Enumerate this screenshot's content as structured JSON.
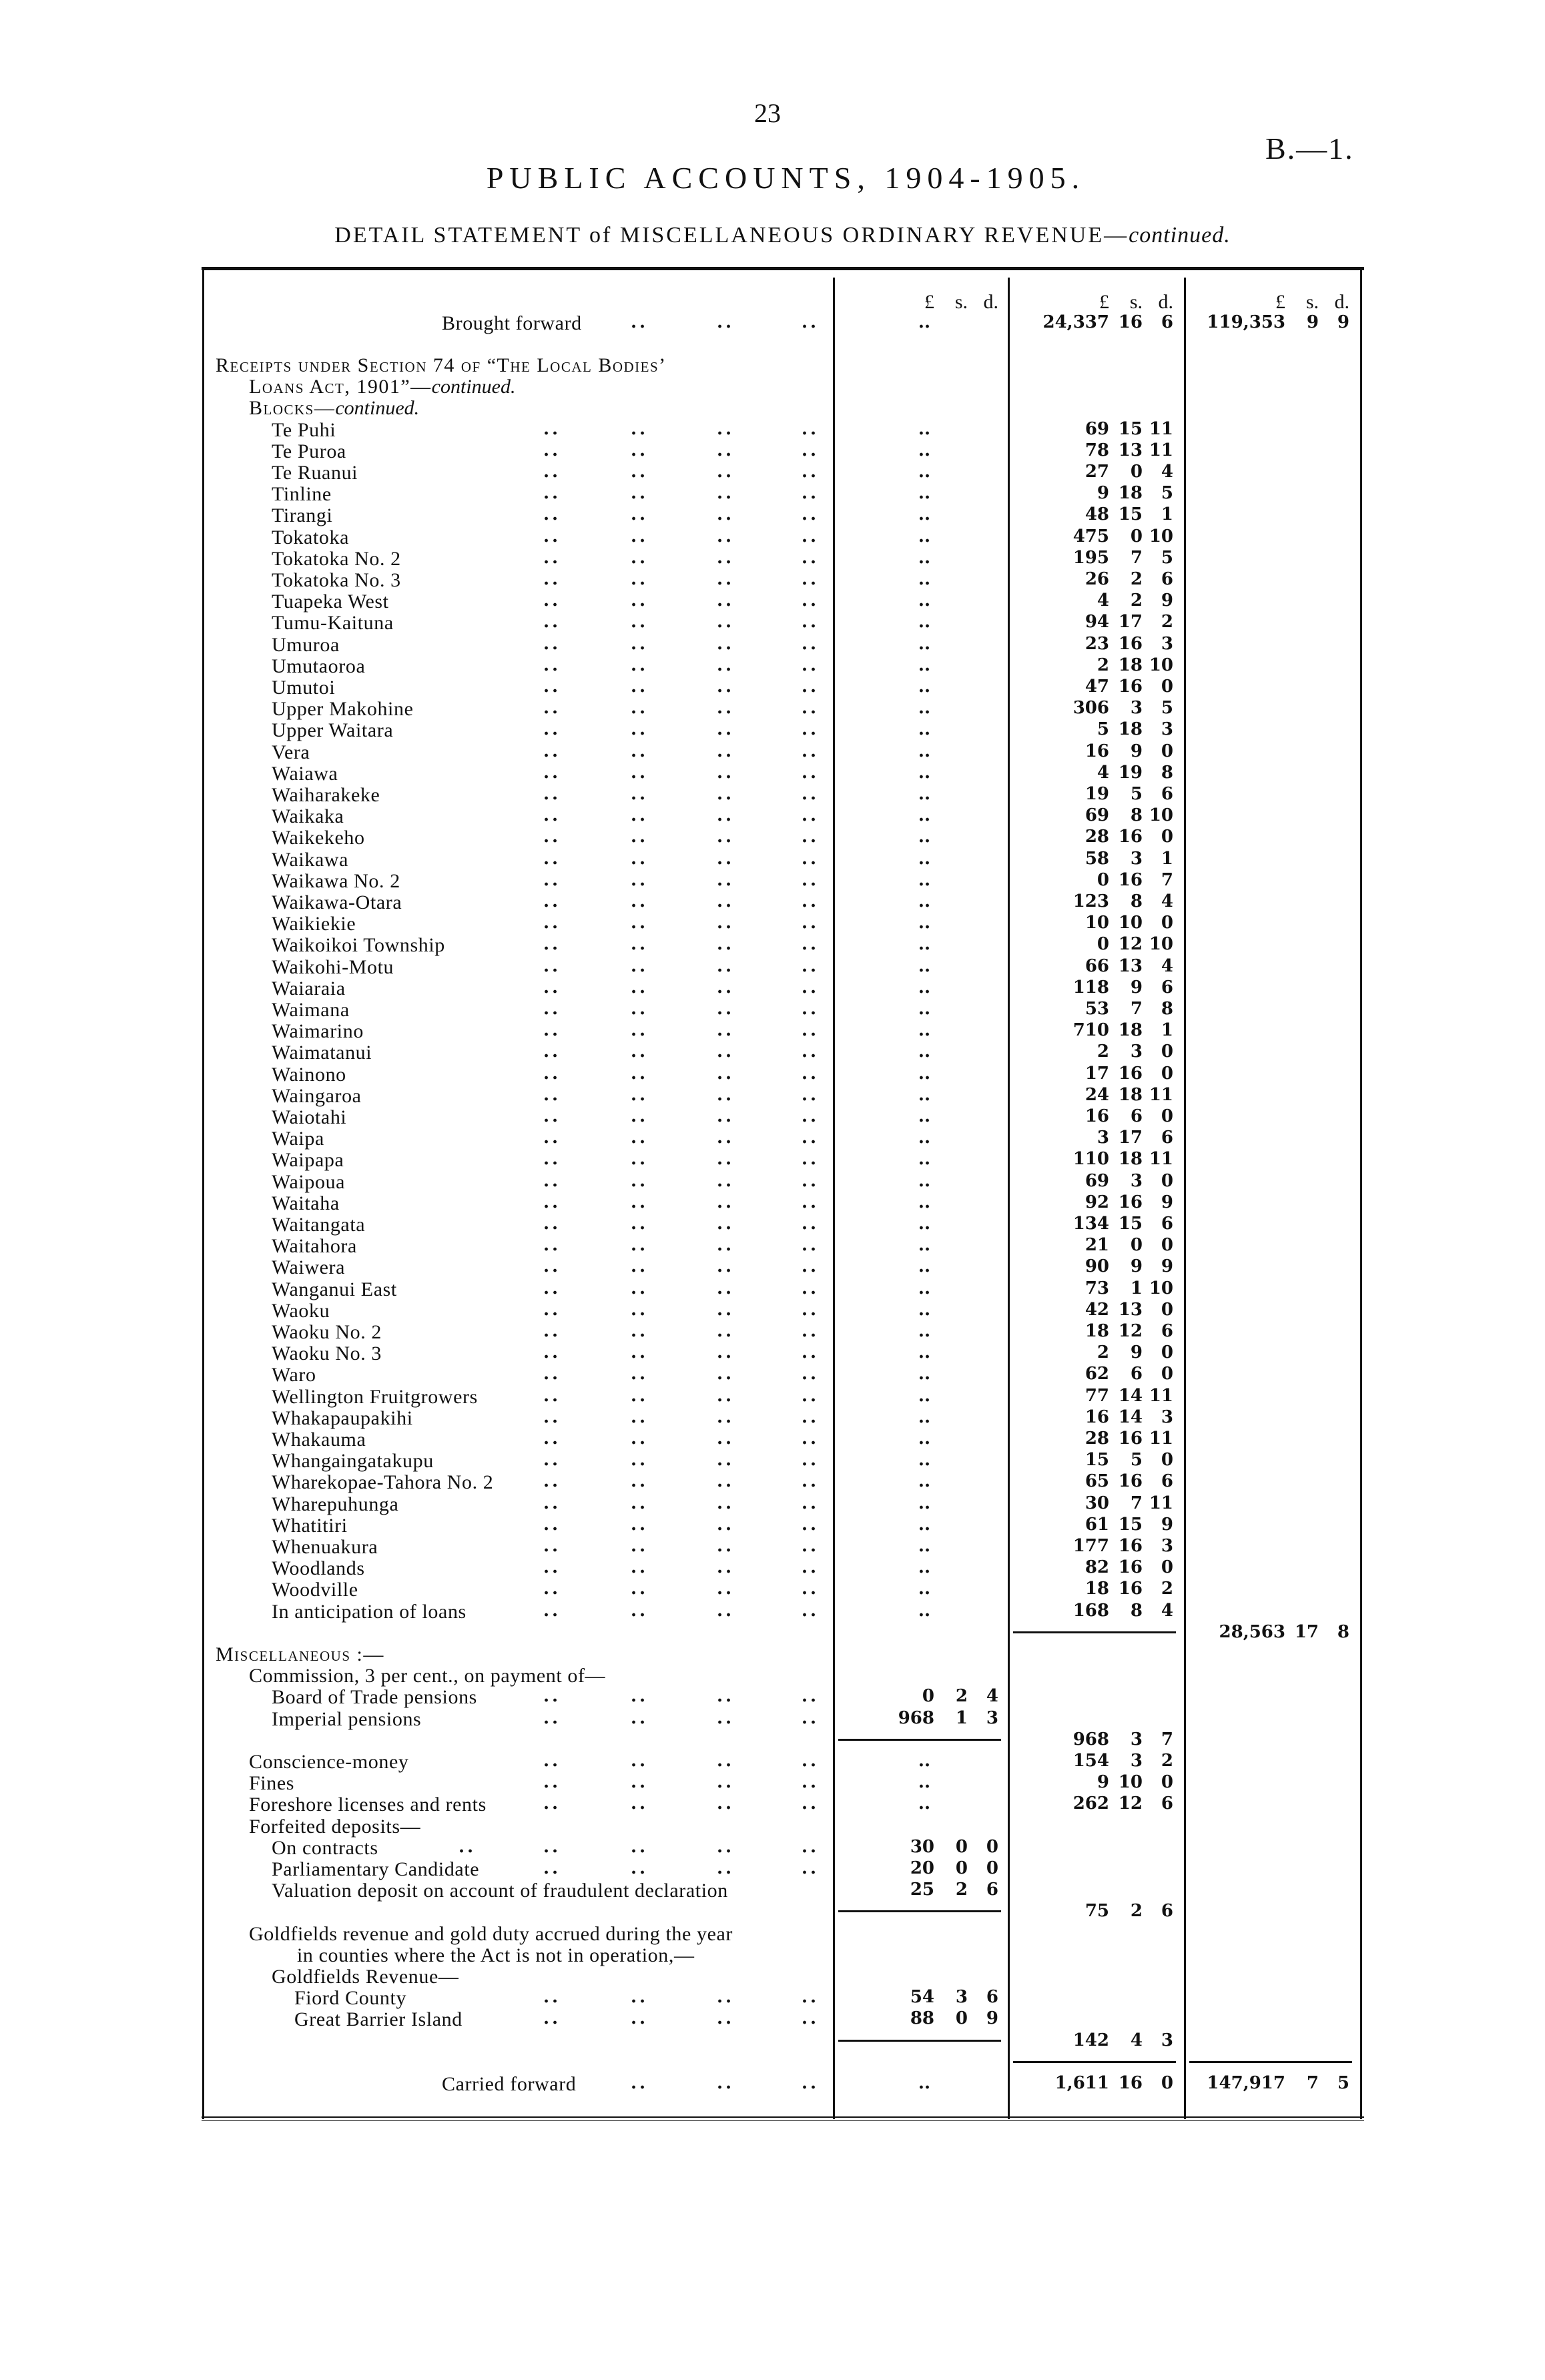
{
  "header": {
    "page_number": "23",
    "reference": "B.—1.",
    "title": "PUBLIC ACCOUNTS, 1904-1905.",
    "subtitle_main": "DETAIL STATEMENT of MISCELLANEOUS ORDINARY REVENUE—",
    "subtitle_italic": "continued."
  },
  "table": {
    "column_headers": [
      [
        "£",
        "s.",
        "d."
      ],
      [
        "£",
        "s.",
        "d."
      ],
      [
        "£",
        "s.",
        "d."
      ]
    ],
    "leader": "..",
    "brought_forward": {
      "label": "Brought forward",
      "leaders": 3,
      "c1": "..",
      "c2": [
        "24,337",
        "16",
        "6"
      ],
      "c3": [
        "119,353",
        "9",
        "9"
      ]
    },
    "rows": [
      {
        "label": "Receipts under Section 74 of “The Local Bodies’",
        "style": "h",
        "sc": true
      },
      {
        "label": "Loans Act, 1901”—",
        "italic": "continued.",
        "style": "l1",
        "sc": true
      },
      {
        "label": "Blocks—",
        "italic": "continued.",
        "style": "l1b",
        "sc": true
      },
      {
        "label": "Te Puhi",
        "style": "l2",
        "leaders": 4,
        "c1": "..",
        "c2": [
          "69",
          "15",
          "11"
        ]
      },
      {
        "label": "Te Puroa",
        "style": "l2",
        "leaders": 4,
        "c1": "..",
        "c2": [
          "78",
          "13",
          "11"
        ]
      },
      {
        "label": "Te Ruanui",
        "style": "l2",
        "leaders": 4,
        "c1": "..",
        "c2": [
          "27",
          "0",
          "4"
        ]
      },
      {
        "label": "Tinline",
        "style": "l2",
        "leaders": 4,
        "c1": "..",
        "c2": [
          "9",
          "18",
          "5"
        ]
      },
      {
        "label": "Tirangi",
        "style": "l2",
        "leaders": 4,
        "c1": "..",
        "c2": [
          "48",
          "15",
          "1"
        ]
      },
      {
        "label": "Tokatoka",
        "style": "l2",
        "leaders": 4,
        "c1": "..",
        "c2": [
          "475",
          "0",
          "10"
        ]
      },
      {
        "label": "Tokatoka No. 2",
        "style": "l2",
        "leaders": 4,
        "c1": "..",
        "c2": [
          "195",
          "7",
          "5"
        ]
      },
      {
        "label": "Tokatoka No. 3",
        "style": "l2",
        "leaders": 4,
        "c1": "..",
        "c2": [
          "26",
          "2",
          "6"
        ]
      },
      {
        "label": "Tuapeka West",
        "style": "l2",
        "leaders": 4,
        "c1": "..",
        "c2": [
          "4",
          "2",
          "9"
        ]
      },
      {
        "label": "Tumu-Kaituna",
        "style": "l2",
        "leaders": 4,
        "c1": "..",
        "c2": [
          "94",
          "17",
          "2"
        ]
      },
      {
        "label": "Umuroa",
        "style": "l2",
        "leaders": 4,
        "c1": "..",
        "c2": [
          "23",
          "16",
          "3"
        ]
      },
      {
        "label": "Umutaoroa",
        "style": "l2",
        "leaders": 4,
        "c1": "..",
        "c2": [
          "2",
          "18",
          "10"
        ]
      },
      {
        "label": "Umutoi",
        "style": "l2",
        "leaders": 4,
        "c1": "..",
        "c2": [
          "47",
          "16",
          "0"
        ]
      },
      {
        "label": "Upper Makohine",
        "style": "l2",
        "leaders": 4,
        "c1": "..",
        "c2": [
          "306",
          "3",
          "5"
        ]
      },
      {
        "label": "Upper Waitara",
        "style": "l2",
        "leaders": 4,
        "c1": "..",
        "c2": [
          "5",
          "18",
          "3"
        ]
      },
      {
        "label": "Vera",
        "style": "l2",
        "leaders": 4,
        "c1": "..",
        "c2": [
          "16",
          "9",
          "0"
        ]
      },
      {
        "label": "Waiawa",
        "style": "l2",
        "leaders": 4,
        "c1": "..",
        "c2": [
          "4",
          "19",
          "8"
        ]
      },
      {
        "label": "Waiharakeke",
        "style": "l2",
        "leaders": 4,
        "c1": "..",
        "c2": [
          "19",
          "5",
          "6"
        ]
      },
      {
        "label": "Waikaka",
        "style": "l2",
        "leaders": 4,
        "c1": "..",
        "c2": [
          "69",
          "8",
          "10"
        ]
      },
      {
        "label": "Waikekeho",
        "style": "l2",
        "leaders": 4,
        "c1": "..",
        "c2": [
          "28",
          "16",
          "0"
        ]
      },
      {
        "label": "Waikawa",
        "style": "l2",
        "leaders": 4,
        "c1": "..",
        "c2": [
          "58",
          "3",
          "1"
        ]
      },
      {
        "label": "Waikawa No. 2",
        "style": "l2",
        "leaders": 4,
        "c1": "..",
        "c2": [
          "0",
          "16",
          "7"
        ]
      },
      {
        "label": "Waikawa-Otara",
        "style": "l2",
        "leaders": 4,
        "c1": "..",
        "c2": [
          "123",
          "8",
          "4"
        ]
      },
      {
        "label": "Waikiekie",
        "style": "l2",
        "leaders": 4,
        "c1": "..",
        "c2": [
          "10",
          "10",
          "0"
        ]
      },
      {
        "label": "Waikoikoi Township",
        "style": "l2",
        "leaders": 4,
        "c1": "..",
        "c2": [
          "0",
          "12",
          "10"
        ]
      },
      {
        "label": "Waikohi-Motu",
        "style": "l2",
        "leaders": 4,
        "c1": "..",
        "c2": [
          "66",
          "13",
          "4"
        ]
      },
      {
        "label": "Waiaraia",
        "style": "l2",
        "leaders": 4,
        "c1": "..",
        "c2": [
          "118",
          "9",
          "6"
        ]
      },
      {
        "label": "Waimana",
        "style": "l2",
        "leaders": 4,
        "c1": "..",
        "c2": [
          "53",
          "7",
          "8"
        ]
      },
      {
        "label": "Waimarino",
        "style": "l2",
        "leaders": 4,
        "c1": "..",
        "c2": [
          "710",
          "18",
          "1"
        ]
      },
      {
        "label": "Waimatanui",
        "style": "l2",
        "leaders": 4,
        "c1": "..",
        "c2": [
          "2",
          "3",
          "0"
        ]
      },
      {
        "label": "Wainono",
        "style": "l2",
        "leaders": 4,
        "c1": "..",
        "c2": [
          "17",
          "16",
          "0"
        ]
      },
      {
        "label": "Waingaroa",
        "style": "l2",
        "leaders": 4,
        "c1": "..",
        "c2": [
          "24",
          "18",
          "11"
        ]
      },
      {
        "label": "Waiotahi",
        "style": "l2",
        "leaders": 4,
        "c1": "..",
        "c2": [
          "16",
          "6",
          "0"
        ]
      },
      {
        "label": "Waipa",
        "style": "l2",
        "leaders": 4,
        "c1": "..",
        "c2": [
          "3",
          "17",
          "6"
        ]
      },
      {
        "label": "Waipapa",
        "style": "l2",
        "leaders": 4,
        "c1": "..",
        "c2": [
          "110",
          "18",
          "11"
        ]
      },
      {
        "label": "Waipoua",
        "style": "l2",
        "leaders": 4,
        "c1": "..",
        "c2": [
          "69",
          "3",
          "0"
        ]
      },
      {
        "label": "Waitaha",
        "style": "l2",
        "leaders": 4,
        "c1": "..",
        "c2": [
          "92",
          "16",
          "9"
        ]
      },
      {
        "label": "Waitangata",
        "style": "l2",
        "leaders": 4,
        "c1": "..",
        "c2": [
          "134",
          "15",
          "6"
        ]
      },
      {
        "label": "Waitahora",
        "style": "l2",
        "leaders": 4,
        "c1": "..",
        "c2": [
          "21",
          "0",
          "0"
        ]
      },
      {
        "label": "Waiwera",
        "style": "l2",
        "leaders": 4,
        "c1": "..",
        "c2": [
          "90",
          "9",
          "9"
        ]
      },
      {
        "label": "Wanganui East",
        "style": "l2",
        "leaders": 4,
        "c1": "..",
        "c2": [
          "73",
          "1",
          "10"
        ]
      },
      {
        "label": "Waoku",
        "style": "l2",
        "leaders": 4,
        "c1": "..",
        "c2": [
          "42",
          "13",
          "0"
        ]
      },
      {
        "label": "Waoku No. 2",
        "style": "l2",
        "leaders": 4,
        "c1": "..",
        "c2": [
          "18",
          "12",
          "6"
        ]
      },
      {
        "label": "Waoku No. 3",
        "style": "l2",
        "leaders": 4,
        "c1": "..",
        "c2": [
          "2",
          "9",
          "0"
        ]
      },
      {
        "label": "Waro",
        "style": "l2",
        "leaders": 4,
        "c1": "..",
        "c2": [
          "62",
          "6",
          "0"
        ]
      },
      {
        "label": "Wellington Fruitgrowers",
        "style": "l2",
        "leaders": 4,
        "c1": "..",
        "c2": [
          "77",
          "14",
          "11"
        ]
      },
      {
        "label": "Whakapaupakihi",
        "style": "l2",
        "leaders": 4,
        "c1": "..",
        "c2": [
          "16",
          "14",
          "3"
        ]
      },
      {
        "label": "Whakauma",
        "style": "l2",
        "leaders": 4,
        "c1": "..",
        "c2": [
          "28",
          "16",
          "11"
        ]
      },
      {
        "label": "Whangaingatakupu",
        "style": "l2",
        "leaders": 4,
        "c1": "..",
        "c2": [
          "15",
          "5",
          "0"
        ]
      },
      {
        "label": "Wharekopae-Tahora No. 2",
        "style": "l2",
        "leaders": 4,
        "c1": "..",
        "c2": [
          "65",
          "16",
          "6"
        ]
      },
      {
        "label": "Wharepuhunga",
        "style": "l2",
        "leaders": 4,
        "c1": "..",
        "c2": [
          "30",
          "7",
          "11"
        ]
      },
      {
        "label": "Whatitiri",
        "style": "l2",
        "leaders": 4,
        "c1": "..",
        "c2": [
          "61",
          "15",
          "9"
        ]
      },
      {
        "label": "Whenuakura",
        "style": "l2",
        "leaders": 4,
        "c1": "..",
        "c2": [
          "177",
          "16",
          "3"
        ]
      },
      {
        "label": "Woodlands",
        "style": "l2",
        "leaders": 4,
        "c1": "..",
        "c2": [
          "82",
          "16",
          "0"
        ]
      },
      {
        "label": "Woodville",
        "style": "l2",
        "leaders": 4,
        "c1": "..",
        "c2": [
          "18",
          "16",
          "2"
        ]
      },
      {
        "label": "In anticipation of loans",
        "style": "l2",
        "leaders": 4,
        "c1": "..",
        "c2": [
          "168",
          "8",
          "4"
        ]
      },
      {
        "rules": [
          2
        ],
        "c3": [
          "28,563",
          "17",
          "8"
        ]
      },
      {
        "label": "Miscellaneous :—",
        "style": "h",
        "sc": true
      },
      {
        "label": "Commission, 3 per cent., on payment of—",
        "style": "l1b"
      },
      {
        "label": "Board of Trade pensions",
        "style": "l2",
        "leaders": 4,
        "c1": [
          "0",
          "2",
          "4"
        ]
      },
      {
        "label": "Imperial pensions",
        "style": "l2",
        "leaders": 4,
        "c1": [
          "968",
          "1",
          "3"
        ]
      },
      {
        "rules": [
          1
        ],
        "c2": [
          "968",
          "3",
          "7"
        ]
      },
      {
        "label": "Conscience-money",
        "style": "l1b",
        "leaders": 4,
        "c1": "..",
        "c2": [
          "154",
          "3",
          "2"
        ]
      },
      {
        "label": "Fines",
        "style": "l1b",
        "leaders": 4,
        "c1": "..",
        "c2": [
          "9",
          "10",
          "0"
        ]
      },
      {
        "label": "Foreshore licenses and rents",
        "style": "l1b",
        "leaders": 4,
        "c1": "..",
        "c2": [
          "262",
          "12",
          "6"
        ]
      },
      {
        "label": "Forfeited deposits—",
        "style": "l1b"
      },
      {
        "label": "On contracts",
        "style": "l2",
        "leaders": 5,
        "c1": [
          "30",
          "0",
          "0"
        ]
      },
      {
        "label": "Parliamentary Candidate",
        "style": "l2",
        "leaders": 4,
        "c1": [
          "20",
          "0",
          "0"
        ]
      },
      {
        "label": "Valuation deposit on account of fraudulent declaration",
        "style": "l2",
        "c1": [
          "25",
          "2",
          "6"
        ]
      },
      {
        "rules": [
          1
        ],
        "c2": [
          "75",
          "2",
          "6"
        ]
      },
      {
        "label": "Goldfields revenue and gold duty accrued during the year",
        "style": "l1b"
      },
      {
        "label": "in counties where the Act is not in operation,—",
        "style": "l4"
      },
      {
        "label": "Goldfields Revenue—",
        "style": "l2"
      },
      {
        "label": "Fiord County",
        "style": "l3",
        "leaders": 4,
        "c1": [
          "54",
          "3",
          "6"
        ]
      },
      {
        "label": "Great Barrier Island",
        "style": "l3",
        "leaders": 4,
        "c1": [
          "88",
          "0",
          "9"
        ]
      },
      {
        "rules": [
          1
        ],
        "c2": [
          "142",
          "4",
          "3"
        ]
      },
      {
        "rules": [
          2,
          3
        ]
      },
      {
        "label": "Carried forward",
        "style": "fwd",
        "leaders": 3,
        "c1": "..",
        "c2": [
          "1,611",
          "16",
          "0"
        ],
        "c3": [
          "147,917",
          "7",
          "5"
        ]
      }
    ]
  }
}
